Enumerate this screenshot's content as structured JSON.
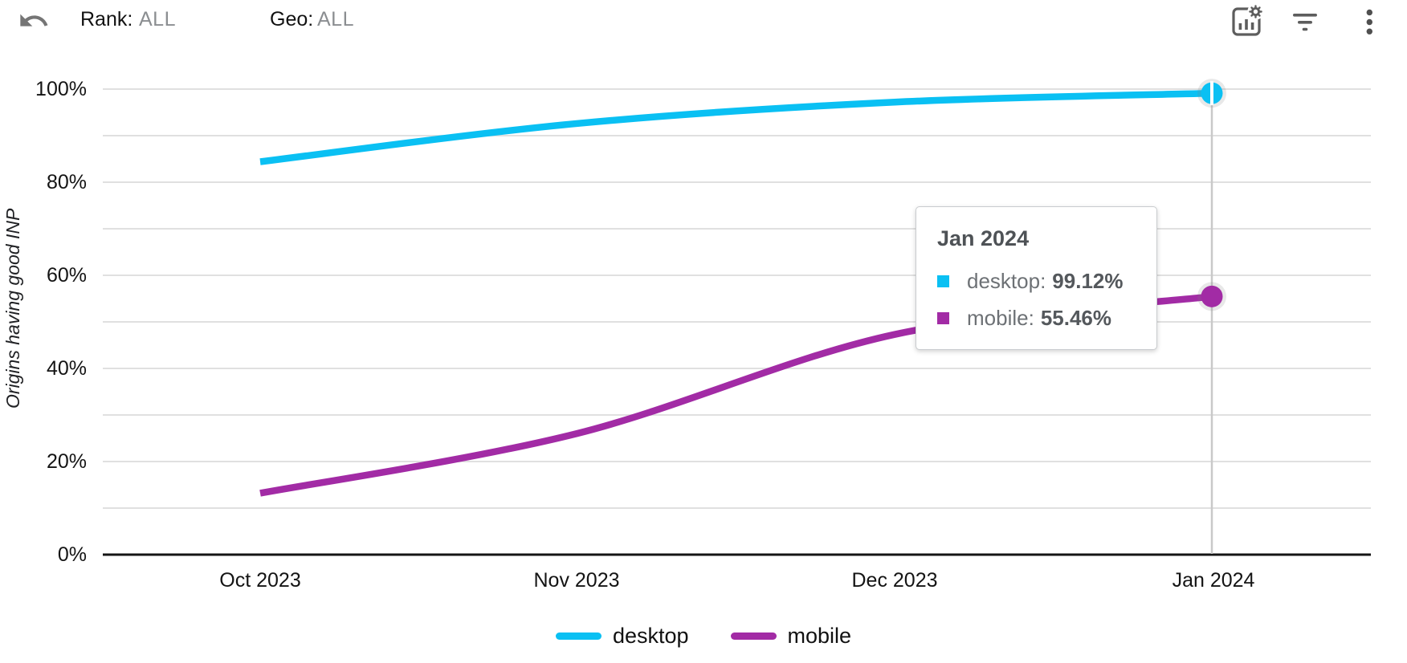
{
  "toolbar": {
    "undo_icon": "undo-icon",
    "rank": {
      "label": "Rank:",
      "value": "ALL"
    },
    "geo": {
      "label": "Geo:",
      "value": "ALL"
    },
    "action_icons": [
      "chart-settings-icon",
      "filter-icon",
      "more-vert-icon"
    ],
    "icon_color": "#5d5d5d"
  },
  "chart_data": {
    "type": "line",
    "title": "",
    "xlabel": "",
    "ylabel": "Origins having good INP",
    "x": [
      "Oct 2023",
      "Nov 2023",
      "Dec 2023",
      "Jan 2024"
    ],
    "series": [
      {
        "name": "desktop",
        "color": "#0ac0f3",
        "values": [
          84.4,
          92.6,
          97.2,
          99.12
        ]
      },
      {
        "name": "mobile",
        "color": "#a22ba5",
        "values": [
          13.2,
          26.0,
          47.3,
          55.46
        ]
      }
    ],
    "ylim": [
      0,
      100
    ],
    "ytick_step": 10,
    "ytick_labels": [
      "0%",
      "20%",
      "40%",
      "60%",
      "80%",
      "100%"
    ],
    "grid": true,
    "grid_color": "#e0e0e0",
    "axis_color": "#151515",
    "crosshair_color": "#c9c9c9",
    "legend_position": "bottom",
    "highlight_x": "Jan 2024"
  },
  "tooltip": {
    "title": "Jan 2024",
    "rows": [
      {
        "label": "desktop:",
        "value": "99.12%"
      },
      {
        "label": "mobile:",
        "value": "55.46%"
      }
    ]
  },
  "legend": {
    "items": [
      {
        "label": "desktop"
      },
      {
        "label": "mobile"
      }
    ]
  }
}
